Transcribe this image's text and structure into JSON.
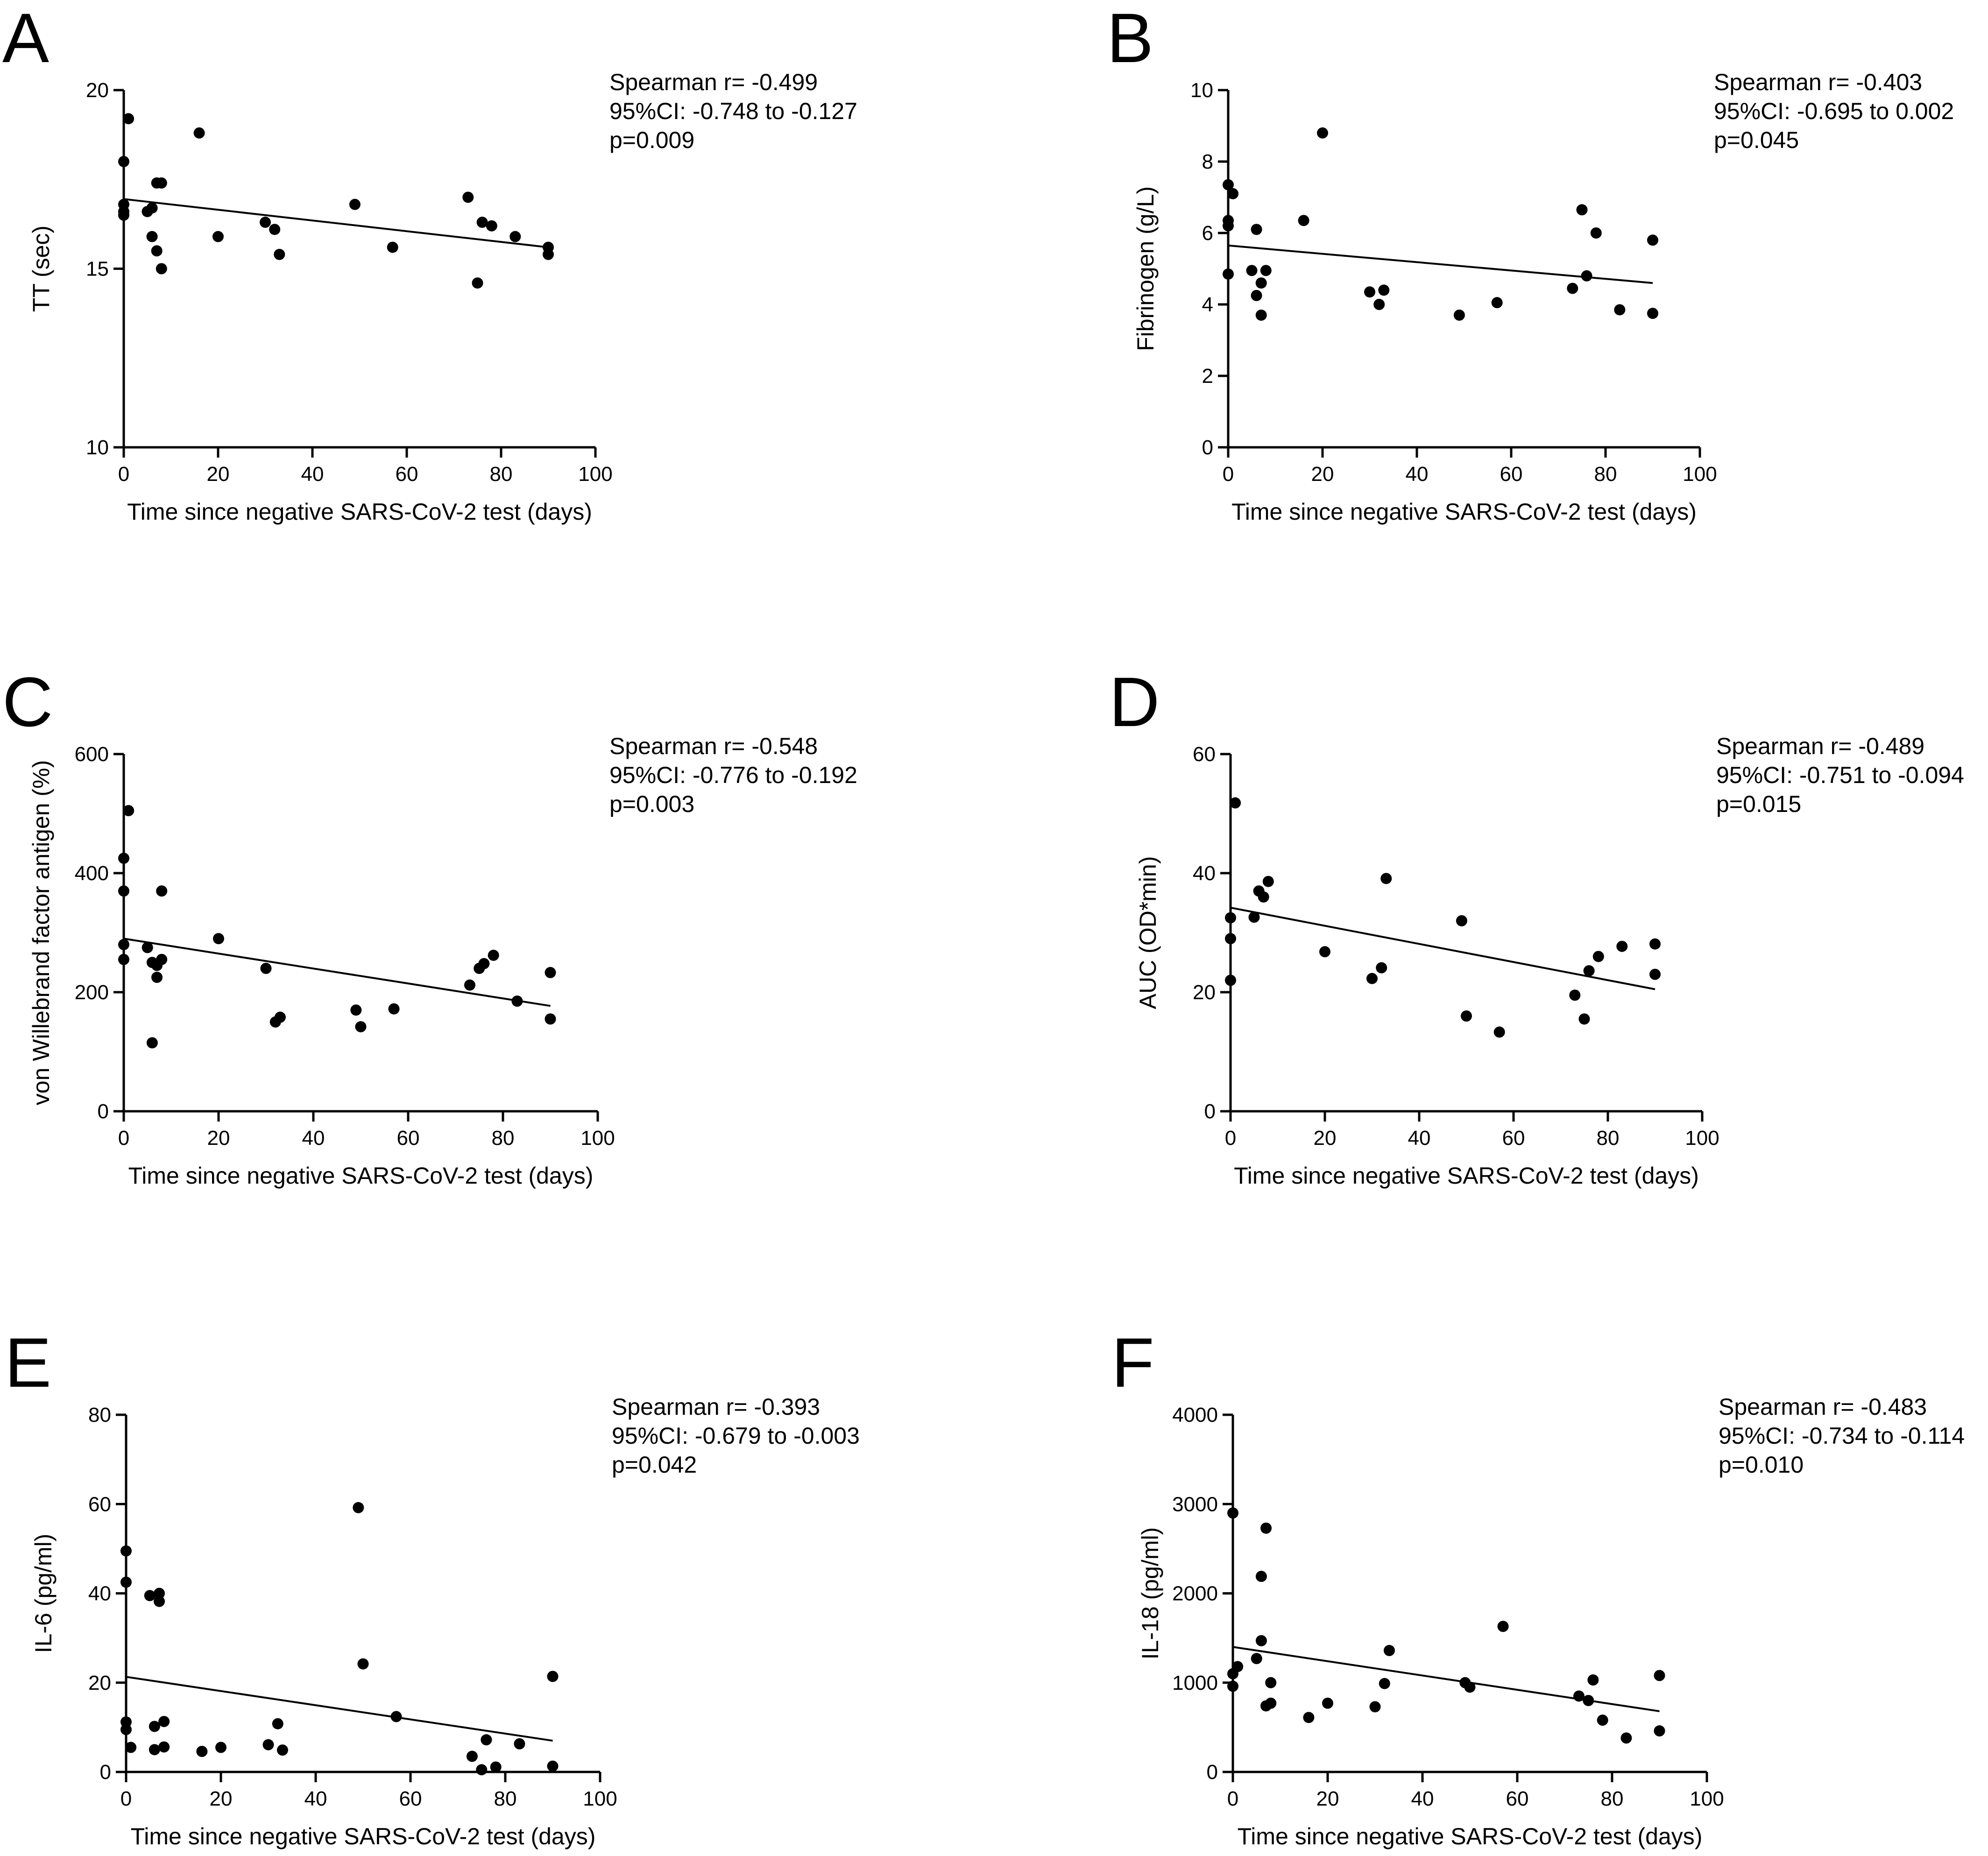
{
  "figure": {
    "panels": [
      {
        "letter": "A",
        "stats": [
          "Spearman r= -0.499",
          "95%CI: -0.748 to -0.127",
          "p=0.009"
        ]
      },
      {
        "letter": "B",
        "stats": [
          "Spearman r= -0.403",
          "95%CI: -0.695 to 0.002",
          "p=0.045"
        ]
      },
      {
        "letter": "C",
        "stats": [
          "Spearman r= -0.548",
          "95%CI: -0.776 to -0.192",
          "p=0.003"
        ]
      },
      {
        "letter": "D",
        "stats": [
          "Spearman r= -0.489",
          "95%CI: -0.751 to -0.094",
          "p=0.015"
        ]
      },
      {
        "letter": "E",
        "stats": [
          "Spearman r= -0.393",
          "95%CI: -0.679 to -0.003",
          "p=0.042"
        ]
      },
      {
        "letter": "F",
        "stats": [
          "Spearman r= -0.483",
          "95%CI: -0.734 to -0.114",
          "p=0.010"
        ]
      }
    ]
  },
  "chart_data": [
    {
      "type": "scatter",
      "panel": "A",
      "xlabel": "Time since negative SARS-CoV-2 test (days)",
      "ylabel": "TT (sec)",
      "xlim": [
        0,
        100
      ],
      "ylim": [
        10,
        20
      ],
      "xticks": [
        0,
        20,
        40,
        60,
        80,
        100
      ],
      "yticks": [
        10,
        15,
        20
      ],
      "x": [
        0,
        0,
        0,
        0,
        1,
        5,
        6,
        6,
        7,
        7,
        8,
        8,
        16,
        20,
        30,
        32,
        33,
        49,
        57,
        73,
        75,
        76,
        78,
        83,
        90,
        90
      ],
      "y": [
        18.0,
        16.8,
        16.6,
        16.5,
        19.2,
        16.6,
        16.7,
        15.9,
        15.5,
        17.4,
        15.0,
        17.4,
        18.8,
        15.9,
        16.3,
        16.1,
        15.4,
        16.8,
        15.6,
        17.0,
        14.6,
        16.3,
        16.2,
        15.9,
        15.6,
        15.4
      ],
      "fit_line": {
        "x": [
          0,
          90
        ],
        "y": [
          16.95,
          15.6
        ]
      }
    },
    {
      "type": "scatter",
      "panel": "B",
      "xlabel": "Time since negative SARS-CoV-2 test (days)",
      "ylabel": "Fibrinogen (g/L)",
      "xlim": [
        0,
        100
      ],
      "ylim": [
        0,
        10
      ],
      "xticks": [
        0,
        20,
        40,
        60,
        80,
        100
      ],
      "yticks": [
        0,
        2,
        4,
        6,
        8,
        10
      ],
      "x": [
        0,
        0,
        0,
        0,
        1,
        5,
        6,
        6,
        7,
        7,
        8,
        16,
        20,
        30,
        32,
        33,
        49,
        57,
        73,
        75,
        76,
        78,
        83,
        90,
        90
      ],
      "y": [
        7.35,
        6.35,
        6.2,
        4.85,
        7.1,
        4.95,
        6.1,
        4.25,
        3.7,
        4.6,
        4.95,
        6.35,
        8.8,
        4.35,
        4.0,
        4.4,
        3.7,
        4.05,
        4.45,
        6.65,
        4.8,
        6.0,
        3.85,
        5.8,
        3.75
      ],
      "fit_line": {
        "x": [
          0,
          90
        ],
        "y": [
          5.65,
          4.6
        ]
      }
    },
    {
      "type": "scatter",
      "panel": "C",
      "xlabel": "Time since negative SARS-CoV-2 test (days)",
      "ylabel": "von Willebrand factor antigen (%)",
      "xlim": [
        0,
        100
      ],
      "ylim": [
        0,
        600
      ],
      "xticks": [
        0,
        20,
        40,
        60,
        80,
        100
      ],
      "yticks": [
        0,
        200,
        400,
        600
      ],
      "x": [
        0,
        0,
        0,
        0,
        1,
        5,
        6,
        6,
        7,
        7,
        8,
        8,
        20,
        30,
        32,
        33,
        49,
        50,
        57,
        73,
        75,
        76,
        78,
        83,
        90,
        90
      ],
      "y": [
        425,
        370,
        280,
        255,
        505,
        275,
        115,
        250,
        245,
        225,
        255,
        370,
        290,
        240,
        150,
        158,
        170,
        142,
        172,
        212,
        240,
        248,
        262,
        185,
        233,
        155
      ],
      "fit_line": {
        "x": [
          0,
          90
        ],
        "y": [
          290,
          177
        ]
      }
    },
    {
      "type": "scatter",
      "panel": "D",
      "xlabel": "Time since negative SARS-CoV-2 test (days)",
      "ylabel": "AUC (OD*min)",
      "xlim": [
        0,
        100
      ],
      "ylim": [
        0,
        60
      ],
      "xticks": [
        0,
        20,
        40,
        60,
        80,
        100
      ],
      "yticks": [
        0,
        20,
        40,
        60
      ],
      "x": [
        0,
        0,
        0,
        1,
        5,
        6,
        7,
        8,
        20,
        30,
        32,
        33,
        49,
        50,
        57,
        73,
        75,
        76,
        78,
        83,
        90,
        90
      ],
      "y": [
        32.5,
        29.0,
        22.0,
        51.8,
        32.6,
        37.0,
        36.0,
        38.6,
        26.8,
        22.3,
        24.1,
        39.1,
        32.0,
        16.0,
        13.3,
        19.5,
        15.5,
        23.6,
        26.0,
        27.7,
        28.1,
        23.0
      ],
      "fit_line": {
        "x": [
          0,
          90
        ],
        "y": [
          34.2,
          20.5
        ]
      }
    },
    {
      "type": "scatter",
      "panel": "E",
      "xlabel": "Time since negative SARS-CoV-2 test (days)",
      "ylabel": "IL-6 (pg/ml)",
      "xlim": [
        0,
        100
      ],
      "ylim": [
        0,
        80
      ],
      "xticks": [
        0,
        20,
        40,
        60,
        80,
        100
      ],
      "yticks": [
        0,
        20,
        40,
        60,
        80
      ],
      "x": [
        0,
        0,
        0,
        0,
        1,
        5,
        6,
        6,
        7,
        7,
        8,
        8,
        16,
        20,
        30,
        32,
        33,
        49,
        50,
        57,
        73,
        75,
        76,
        78,
        83,
        90,
        90
      ],
      "y": [
        49.5,
        42.5,
        11.2,
        9.5,
        5.5,
        39.5,
        10.2,
        5.0,
        40.0,
        38.2,
        11.3,
        5.6,
        4.6,
        5.5,
        6.1,
        10.8,
        4.9,
        59.2,
        24.2,
        12.4,
        3.5,
        0.5,
        7.2,
        1.1,
        6.3,
        21.4,
        1.3
      ],
      "fit_line": {
        "x": [
          0,
          90
        ],
        "y": [
          21.3,
          7.0
        ]
      }
    },
    {
      "type": "scatter",
      "panel": "F",
      "xlabel": "Time since negative SARS-CoV-2 test (days)",
      "ylabel": "IL-18 (pg/ml)",
      "xlim": [
        0,
        100
      ],
      "ylim": [
        0,
        4000
      ],
      "xticks": [
        0,
        20,
        40,
        60,
        80,
        100
      ],
      "yticks": [
        0,
        1000,
        2000,
        3000,
        4000
      ],
      "x": [
        0,
        0,
        0,
        1,
        5,
        6,
        6,
        7,
        7,
        8,
        8,
        16,
        20,
        30,
        32,
        33,
        49,
        50,
        57,
        73,
        75,
        76,
        78,
        83,
        90,
        90
      ],
      "y": [
        2900,
        1100,
        960,
        1180,
        1270,
        2190,
        1470,
        2730,
        740,
        770,
        1000,
        610,
        770,
        730,
        990,
        1360,
        1000,
        950,
        1630,
        850,
        800,
        1030,
        580,
        380,
        1080,
        460
      ],
      "fit_line": {
        "x": [
          0,
          90
        ],
        "y": [
          1400,
          680
        ]
      }
    }
  ]
}
